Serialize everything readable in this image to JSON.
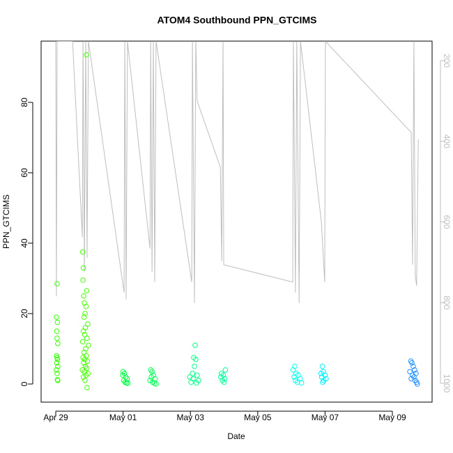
{
  "chart_data": {
    "type": "scatter",
    "title": "ATOM4 Southbound PPN_GTCIMS",
    "x_label": "Date",
    "y_label": "PPN_GTCIMS",
    "xlim": [
      -0.435,
      11.18
    ],
    "xticks": [
      {
        "value": 0,
        "label": "Apr 29"
      },
      {
        "value": 2,
        "label": "May 01"
      },
      {
        "value": 4,
        "label": "May 03"
      },
      {
        "value": 6,
        "label": "May 05"
      },
      {
        "value": 8,
        "label": "May 07"
      },
      {
        "value": 10,
        "label": "May 09"
      }
    ],
    "ylim": [
      -5.15,
      97.4
    ],
    "yticks": [
      0,
      20,
      40,
      60,
      80
    ],
    "y2lim": [
      1046.6,
      151.6
    ],
    "y2ticks": [
      200,
      400,
      600,
      800,
      1000
    ],
    "series": [
      {
        "color": "#33ff00",
        "x": [
          0.04,
          0.02,
          0.05,
          0.03,
          0.04,
          0.06,
          0.02,
          0.04,
          0.05,
          0.03,
          0.06,
          0.02,
          0.04,
          0.05,
          0.06
        ],
        "values": [
          28.5,
          19,
          17.5,
          15,
          13,
          11.5,
          8,
          7.5,
          7,
          6,
          5,
          4,
          3,
          1.2,
          1
        ]
      },
      {
        "color": "#44ff00",
        "x": [
          0.91,
          0.8,
          0.82,
          0.81,
          0.92,
          0.83,
          0.85,
          0.9,
          0.87,
          0.84,
          0.95,
          0.88,
          0.82,
          0.86,
          0.93,
          0.8,
          0.97,
          0.89,
          0.84,
          0.91,
          0.81,
          0.86,
          0.94,
          0.83,
          0.88,
          0.92,
          0.79,
          0.85,
          0.96,
          0.9,
          0.82,
          0.87,
          0.93
        ],
        "values": [
          93.5,
          37.5,
          33,
          29.5,
          26.5,
          25,
          23,
          22,
          20,
          19,
          17,
          16,
          15,
          14,
          13,
          12,
          11,
          10,
          9,
          8,
          7.5,
          7,
          6.5,
          6,
          5,
          4.5,
          4,
          3.5,
          3,
          2.5,
          2,
          1,
          -1
        ]
      },
      {
        "color": "#00ff44",
        "x": [
          2.0,
          2.04,
          1.99,
          2.08,
          2.12,
          2.02,
          2.06,
          2.1,
          2.14
        ],
        "values": [
          3.5,
          3,
          2.5,
          2,
          1.5,
          1,
          0.5,
          0.3,
          0.2
        ]
      },
      {
        "color": "#00ff55",
        "x": [
          2.82,
          2.86,
          2.9,
          2.84,
          2.95,
          2.8,
          2.88,
          2.93,
          2.98
        ],
        "values": [
          4,
          3.5,
          2.5,
          2,
          1.5,
          1,
          0.5,
          0.2,
          0
        ]
      },
      {
        "color": "#00ff88",
        "x": [
          4.14,
          4.1,
          4.16,
          4.12,
          4.06,
          4.2,
          3.98,
          4.08,
          4.24,
          4.02,
          4.18
        ],
        "values": [
          11,
          7.5,
          7,
          5,
          3,
          2.5,
          2,
          1.5,
          1,
          0.5,
          0.3
        ]
      },
      {
        "color": "#00ff99",
        "x": [
          5.04,
          4.92,
          4.98,
          4.9,
          5.02,
          4.95,
          5.0
        ],
        "values": [
          4,
          3,
          2.5,
          2,
          1.5,
          1,
          0.5
        ]
      },
      {
        "color": "#00ffee",
        "x": [
          7.1,
          7.05,
          7.14,
          7.2,
          7.08,
          7.26,
          7.12,
          7.18,
          7.3
        ],
        "values": [
          5,
          4,
          3,
          2.5,
          2,
          1.5,
          1,
          0.5,
          0.3
        ]
      },
      {
        "color": "#00eeff",
        "x": [
          7.92,
          7.95,
          7.88,
          8.0,
          7.9,
          8.03,
          7.96,
          7.93
        ],
        "values": [
          5,
          3.5,
          3,
          2.5,
          2,
          1.5,
          1,
          0.5
        ]
      },
      {
        "color": "#1e90ff",
        "x": [
          10.55,
          10.58,
          10.62,
          10.66,
          10.52,
          10.7,
          10.6,
          10.64,
          10.56,
          10.68,
          10.72,
          10.74
        ],
        "values": [
          6.5,
          6,
          5,
          4,
          3.5,
          3,
          2.5,
          2,
          1.5,
          1,
          0.5,
          0
        ]
      },
      {
        "color": "#bebebe",
        "axis": "y2",
        "x": [
          0,
          0.02,
          0.04,
          0.5,
          0.79,
          0.81,
          0.85,
          0.89,
          0.93,
          0.97,
          2.03,
          2.05,
          2.09,
          2.13,
          2.8,
          2.82,
          2.86,
          2.9,
          2.94,
          2.98,
          4.04,
          4.06,
          4.12,
          4.16,
          4.2,
          4.89,
          4.93,
          4.97,
          4.99,
          7.04,
          7.06,
          7.12,
          7.16,
          7.23,
          7.27,
          7.89,
          7.99,
          8.01,
          10.56,
          10.6,
          10.64,
          10.68,
          10.72,
          10.77
        ],
        "values": [
          152,
          784,
          152,
          152,
          637,
          152,
          723,
          152,
          689,
          152,
          775,
          152,
          792,
          152,
          666,
          152,
          723,
          152,
          749,
          152,
          749,
          152,
          801,
          152,
          300,
          464,
          697,
          152,
          706,
          749,
          152,
          775,
          152,
          801,
          152,
          599,
          749,
          152,
          378,
          706,
          152,
          732,
          758,
          395
        ]
      }
    ]
  }
}
